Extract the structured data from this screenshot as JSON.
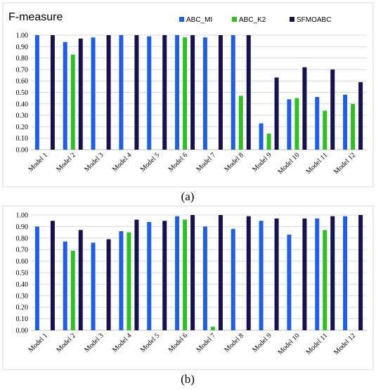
{
  "colors": {
    "ABC_MI": "#1f5fe8",
    "ABC_K2": "#2fbf24",
    "SFMOABC": "#16124f"
  },
  "chart_data": [
    {
      "type": "bar",
      "title": "F-measure",
      "caption": "(a)",
      "categories": [
        "Model 1",
        "Model 2",
        "Model 3",
        "Model 4",
        "Model 5",
        "Model 6",
        "Model 7",
        "Model 8",
        "Model 9",
        "Model 10",
        "Model 11",
        "Model 12"
      ],
      "series": [
        {
          "name": "ABC_MI",
          "values": [
            1.0,
            0.94,
            0.98,
            1.0,
            0.99,
            1.0,
            0.98,
            1.0,
            0.23,
            0.44,
            0.46,
            0.48
          ]
        },
        {
          "name": "ABC_K2",
          "values": [
            0.0,
            0.83,
            0.0,
            0.0,
            0.0,
            0.98,
            0.0,
            0.47,
            0.14,
            0.45,
            0.34,
            0.4
          ]
        },
        {
          "name": "SFMOABC",
          "values": [
            1.0,
            0.97,
            1.0,
            1.0,
            1.0,
            1.0,
            1.0,
            1.0,
            0.63,
            0.72,
            0.7,
            0.59
          ]
        }
      ],
      "legend": [
        "ABC_MI",
        "ABC_K2",
        "SFMOABC"
      ],
      "legend_position": "top-right",
      "ylim": [
        0,
        1
      ],
      "yticks": [
        "0.00",
        "0.10",
        "0.20",
        "0.30",
        "0.40",
        "0.50",
        "0.60",
        "0.70",
        "0.80",
        "0.90",
        "1.00"
      ],
      "xlabel": "",
      "ylabel": "",
      "grid": true
    },
    {
      "type": "bar",
      "title": "",
      "caption": "(b)",
      "categories": [
        "Model 1",
        "Model 2",
        "Model 3",
        "Model 4",
        "Model 5",
        "Model 6",
        "Model 7",
        "Model 8",
        "Model 9",
        "Model 10",
        "Model 11",
        "Model 12"
      ],
      "series": [
        {
          "name": "ABC_MI",
          "values": [
            0.9,
            0.77,
            0.76,
            0.86,
            0.94,
            0.99,
            0.9,
            0.88,
            0.95,
            0.83,
            0.97,
            0.99
          ]
        },
        {
          "name": "ABC_K2",
          "values": [
            0.0,
            0.69,
            0.0,
            0.85,
            0.0,
            0.96,
            0.03,
            0.0,
            0.0,
            0.0,
            0.87,
            0.0
          ]
        },
        {
          "name": "SFMOABC",
          "values": [
            0.95,
            0.87,
            0.79,
            0.96,
            0.95,
            1.0,
            1.0,
            0.99,
            0.97,
            0.97,
            0.99,
            1.0
          ]
        }
      ],
      "legend": [],
      "ylim": [
        0,
        1
      ],
      "yticks": [
        "0.00",
        "0.10",
        "0.20",
        "0.30",
        "0.40",
        "0.50",
        "0.60",
        "0.70",
        "0.80",
        "0.90",
        "1.00"
      ],
      "xlabel": "",
      "ylabel": "",
      "grid": true
    }
  ]
}
